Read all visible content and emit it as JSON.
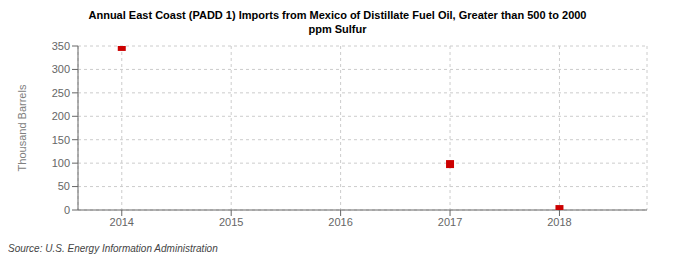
{
  "chart_data": {
    "type": "scatter",
    "title": "Annual East Coast (PADD 1) Imports from Mexico of Distillate Fuel Oil, Greater than 500 to 2000\nppm Sulfur",
    "y_label": "Thousand Barrels",
    "annotation": "Source: U.S. Energy Information Administration",
    "x": [
      2014,
      2017,
      2018
    ],
    "values": [
      348,
      98,
      2
    ],
    "xlim": [
      2013.6,
      2018.8
    ],
    "xticks": [
      2014,
      2015,
      2016,
      2017,
      2018
    ],
    "ylim": [
      0,
      350
    ],
    "yticks": [
      0,
      50,
      100,
      150,
      200,
      250,
      300,
      350
    ],
    "color": "#cc0000",
    "marker": "square",
    "grid": true
  }
}
